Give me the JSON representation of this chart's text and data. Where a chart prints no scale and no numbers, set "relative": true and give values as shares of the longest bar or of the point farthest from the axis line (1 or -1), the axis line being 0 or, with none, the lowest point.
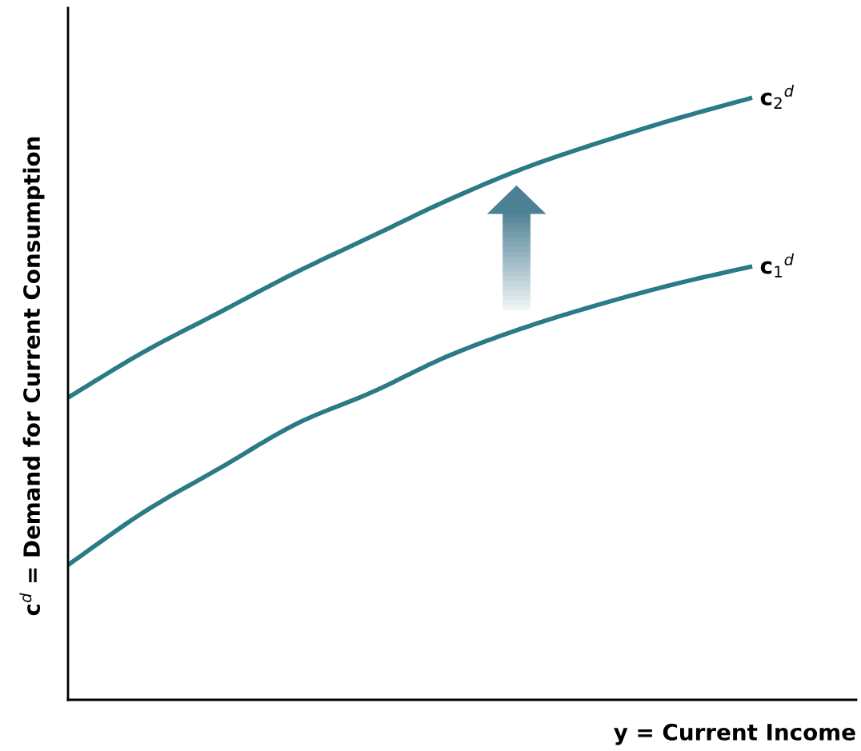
{
  "chart_data": {
    "type": "line",
    "relative": true,
    "xlabel": "y = Current Income",
    "ylabel": "c$^{d}$ = Demand for Current Consumption",
    "categories": [
      null,
      null,
      null,
      null,
      null,
      null,
      null,
      null,
      null,
      null
    ],
    "series": [
      {
        "name": "c$_{2}$$^{d}$",
        "color": "#2a7b86",
        "values": [
          0.502,
          0.578,
          0.644,
          0.71,
          0.77,
          0.83,
          0.883,
          0.926,
          0.965,
          1.0
        ]
      },
      {
        "name": "c$_{1}$$^{d}$",
        "color": "#2a7b86",
        "values": [
          0.224,
          0.312,
          0.385,
          0.458,
          0.511,
          0.571,
          0.618,
          0.657,
          0.691,
          0.72
        ]
      }
    ],
    "legend": false
  }
}
